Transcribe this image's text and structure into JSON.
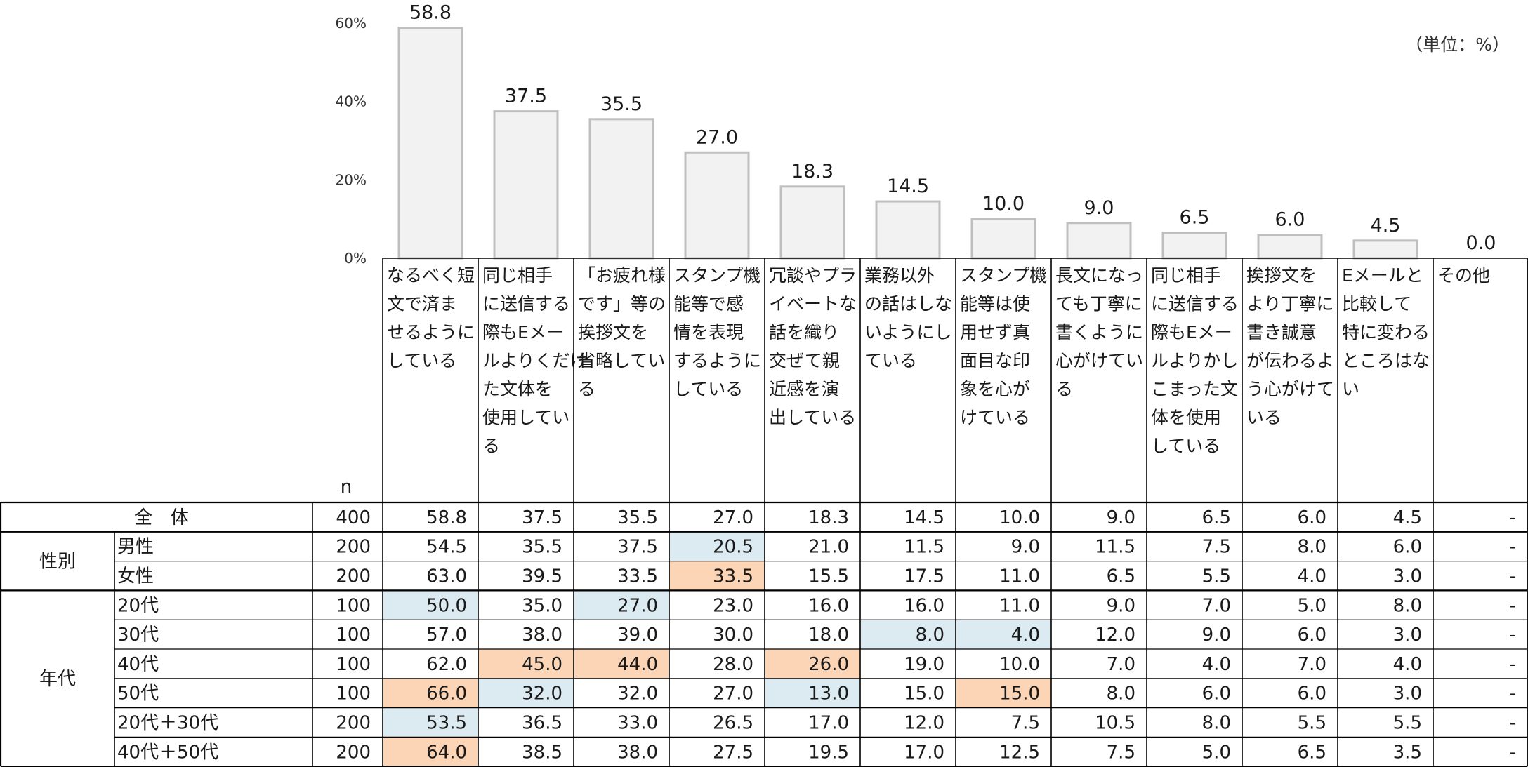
{
  "unit_note": "（単位：%）",
  "n_header": "n",
  "colors": {
    "bar_fill": "#f2f2f2",
    "bar_stroke": "#bfbfbf",
    "highlight_low": "#dcebf2",
    "highlight_high": "#fbd5b5",
    "grid": "#000000"
  },
  "chart_data": {
    "type": "bar",
    "ylim": [
      0,
      60
    ],
    "yticks": [
      "0%",
      "20%",
      "40%",
      "60%"
    ],
    "categories": [
      "なるべく短文で済ませるようにしている",
      "同じ相手に送信する際もEメールよりくだけた文体を使用している",
      "「お疲れ様です」等の挨拶文を省略している",
      "スタンプ機能等で感情を表現するようにしている",
      "冗談やプライベートな話を織り交ぜて親近感を演出している",
      "業務以外の話はしないようにしている",
      "スタンプ機能等は使用せず真面目な印象を心がけている",
      "長文になっても丁寧に書くように心がけている",
      "同じ相手に送信する際もEメールよりかしこまった文体を使用している",
      "挨拶文をより丁寧に書き誠意が伝わるよう心がけている",
      "Eメールと比較して特に変わるところはない",
      "その他"
    ],
    "category_lines": [
      [
        "なるべく短",
        "文で済ま",
        "せるように",
        "している"
      ],
      [
        "同じ相手",
        "に送信する",
        "際もEメー",
        "ルよりくだけ",
        "た文体を",
        "使用してい",
        "る"
      ],
      [
        "「お疲れ様",
        "です」等の",
        "挨拶文を",
        "省略してい",
        "る"
      ],
      [
        "スタンプ機",
        "能等で感",
        "情を表現",
        "するように",
        "している"
      ],
      [
        "冗談やプラ",
        "イベートな",
        "話を織り",
        "交ぜて親",
        "近感を演",
        "出している"
      ],
      [
        "業務以外",
        "の話はしな",
        "いようにし",
        "ている"
      ],
      [
        "スタンプ機",
        "能等は使",
        "用せず真",
        "面目な印",
        "象を心が",
        "けている"
      ],
      [
        "長文になっ",
        "ても丁寧に",
        "書くように",
        "心がけてい",
        "る"
      ],
      [
        "同じ相手",
        "に送信する",
        "際もEメー",
        "ルよりかし",
        "こまった文",
        "体を使用",
        "している"
      ],
      [
        "挨拶文を",
        "より丁寧に",
        "書き誠意",
        "が伝わるよ",
        "う心がけて",
        "いる"
      ],
      [
        "Eメールと",
        "比較して",
        "特に変わる",
        "ところはな",
        "い"
      ],
      [
        "その他"
      ]
    ],
    "values": [
      58.8,
      37.5,
      35.5,
      27.0,
      18.3,
      14.5,
      10.0,
      9.0,
      6.5,
      6.0,
      4.5,
      0.0
    ],
    "value_labels": [
      "58.8",
      "37.5",
      "35.5",
      "27.0",
      "18.3",
      "14.5",
      "10.0",
      "9.0",
      "6.5",
      "6.0",
      "4.5",
      "0.0"
    ]
  },
  "table": {
    "rows": [
      {
        "group": "全　体",
        "sub": "",
        "n": "400",
        "values": [
          "58.8",
          "37.5",
          "35.5",
          "27.0",
          "18.3",
          "14.5",
          "10.0",
          "9.0",
          "6.5",
          "6.0",
          "4.5",
          "-"
        ],
        "highlights": [
          null,
          null,
          null,
          null,
          null,
          null,
          null,
          null,
          null,
          null,
          null,
          null
        ]
      },
      {
        "group": "性別",
        "sub": "男性",
        "n": "200",
        "values": [
          "54.5",
          "35.5",
          "37.5",
          "20.5",
          "21.0",
          "11.5",
          "9.0",
          "11.5",
          "7.5",
          "8.0",
          "6.0",
          "-"
        ],
        "highlights": [
          null,
          null,
          null,
          "low",
          null,
          null,
          null,
          null,
          null,
          null,
          null,
          null
        ]
      },
      {
        "group": "",
        "sub": "女性",
        "n": "200",
        "values": [
          "63.0",
          "39.5",
          "33.5",
          "33.5",
          "15.5",
          "17.5",
          "11.0",
          "6.5",
          "5.5",
          "4.0",
          "3.0",
          "-"
        ],
        "highlights": [
          null,
          null,
          null,
          "high",
          null,
          null,
          null,
          null,
          null,
          null,
          null,
          null
        ]
      },
      {
        "group": "年代",
        "sub": "20代",
        "n": "100",
        "values": [
          "50.0",
          "35.0",
          "27.0",
          "23.0",
          "16.0",
          "16.0",
          "11.0",
          "9.0",
          "7.0",
          "5.0",
          "8.0",
          "-"
        ],
        "highlights": [
          "low",
          null,
          "low",
          null,
          null,
          null,
          null,
          null,
          null,
          null,
          null,
          null
        ]
      },
      {
        "group": "",
        "sub": "30代",
        "n": "100",
        "values": [
          "57.0",
          "38.0",
          "39.0",
          "30.0",
          "18.0",
          "8.0",
          "4.0",
          "12.0",
          "9.0",
          "6.0",
          "3.0",
          "-"
        ],
        "highlights": [
          null,
          null,
          null,
          null,
          null,
          "low",
          "low",
          null,
          null,
          null,
          null,
          null
        ]
      },
      {
        "group": "",
        "sub": "40代",
        "n": "100",
        "values": [
          "62.0",
          "45.0",
          "44.0",
          "28.0",
          "26.0",
          "19.0",
          "10.0",
          "7.0",
          "4.0",
          "7.0",
          "4.0",
          "-"
        ],
        "highlights": [
          null,
          "high",
          "high",
          null,
          "high",
          null,
          null,
          null,
          null,
          null,
          null,
          null
        ]
      },
      {
        "group": "",
        "sub": "50代",
        "n": "100",
        "values": [
          "66.0",
          "32.0",
          "32.0",
          "27.0",
          "13.0",
          "15.0",
          "15.0",
          "8.0",
          "6.0",
          "6.0",
          "3.0",
          "-"
        ],
        "highlights": [
          "high",
          "low",
          null,
          null,
          "low",
          null,
          "high",
          null,
          null,
          null,
          null,
          null
        ]
      },
      {
        "group": "",
        "sub": "20代＋30代",
        "n": "200",
        "values": [
          "53.5",
          "36.5",
          "33.0",
          "26.5",
          "17.0",
          "12.0",
          "7.5",
          "10.5",
          "8.0",
          "5.5",
          "5.5",
          "-"
        ],
        "highlights": [
          "low",
          null,
          null,
          null,
          null,
          null,
          null,
          null,
          null,
          null,
          null,
          null
        ]
      },
      {
        "group": "",
        "sub": "40代＋50代",
        "n": "200",
        "values": [
          "64.0",
          "38.5",
          "38.0",
          "27.5",
          "19.5",
          "17.0",
          "12.5",
          "7.5",
          "5.0",
          "6.5",
          "3.5",
          "-"
        ],
        "highlights": [
          "high",
          null,
          null,
          null,
          null,
          null,
          null,
          null,
          null,
          null,
          null,
          null
        ]
      }
    ]
  }
}
